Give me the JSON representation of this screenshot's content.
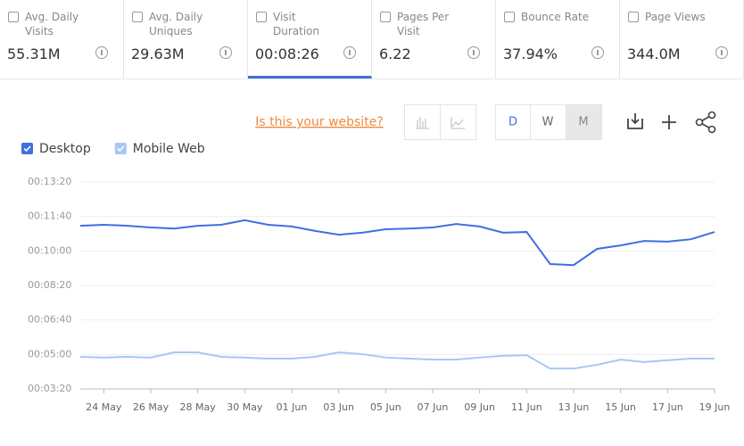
{
  "tabs": [
    {
      "label": "Avg. Daily Visits",
      "value": "55.31M"
    },
    {
      "label": "Avg. Daily Uniques",
      "value": "29.63M"
    },
    {
      "label": "Visit Duration",
      "value": "00:08:26"
    },
    {
      "label": "Pages Per Visit",
      "value": "6.22"
    },
    {
      "label": "Bounce Rate",
      "value": "37.94%"
    },
    {
      "label": "Page Views",
      "value": "344.0M"
    }
  ],
  "link": "Is this your website?",
  "granularity": [
    "D",
    "W",
    "M"
  ],
  "chart_data": {
    "type": "line",
    "categories": [
      null,
      "24 May",
      null,
      "26 May",
      null,
      "28 May",
      null,
      "30 May",
      null,
      "01 Jun",
      null,
      "03 Jun",
      null,
      "05 Jun",
      null,
      "07 Jun",
      null,
      "09 Jun",
      null,
      "11 Jun",
      null,
      "13 Jun",
      null,
      "15 Jun",
      null,
      "17 Jun",
      null,
      "19 Jun"
    ],
    "series": [
      {
        "name": "Desktop",
        "color": "#3f6fe0",
        "values": [
          673,
          676,
          673,
          668,
          665,
          673,
          676,
          689,
          676,
          671,
          658,
          647,
          653,
          663,
          665,
          668,
          678,
          671,
          653,
          655,
          562,
          559,
          606,
          616,
          629,
          627,
          634,
          655
        ]
      },
      {
        "name": "Mobile Web",
        "color": "#a9c6f5",
        "values": [
          293,
          291,
          293,
          291,
          306,
          306,
          293,
          291,
          288,
          288,
          293,
          306,
          301,
          291,
          288,
          285,
          285,
          291,
          296,
          298,
          259,
          259,
          270,
          285,
          278,
          283,
          288,
          288
        ]
      }
    ],
    "ylim": [
      200,
      800
    ],
    "yticks": [
      {
        "value": 200,
        "label": "00:03:20"
      },
      {
        "value": 300,
        "label": "00:05:00"
      },
      {
        "value": 400,
        "label": "00:06:40"
      },
      {
        "value": 500,
        "label": "00:08:20"
      },
      {
        "value": 600,
        "label": "00:10:00"
      },
      {
        "value": 700,
        "label": "00:11:40"
      },
      {
        "value": 800,
        "label": "00:13:20"
      }
    ],
    "grid": true
  }
}
